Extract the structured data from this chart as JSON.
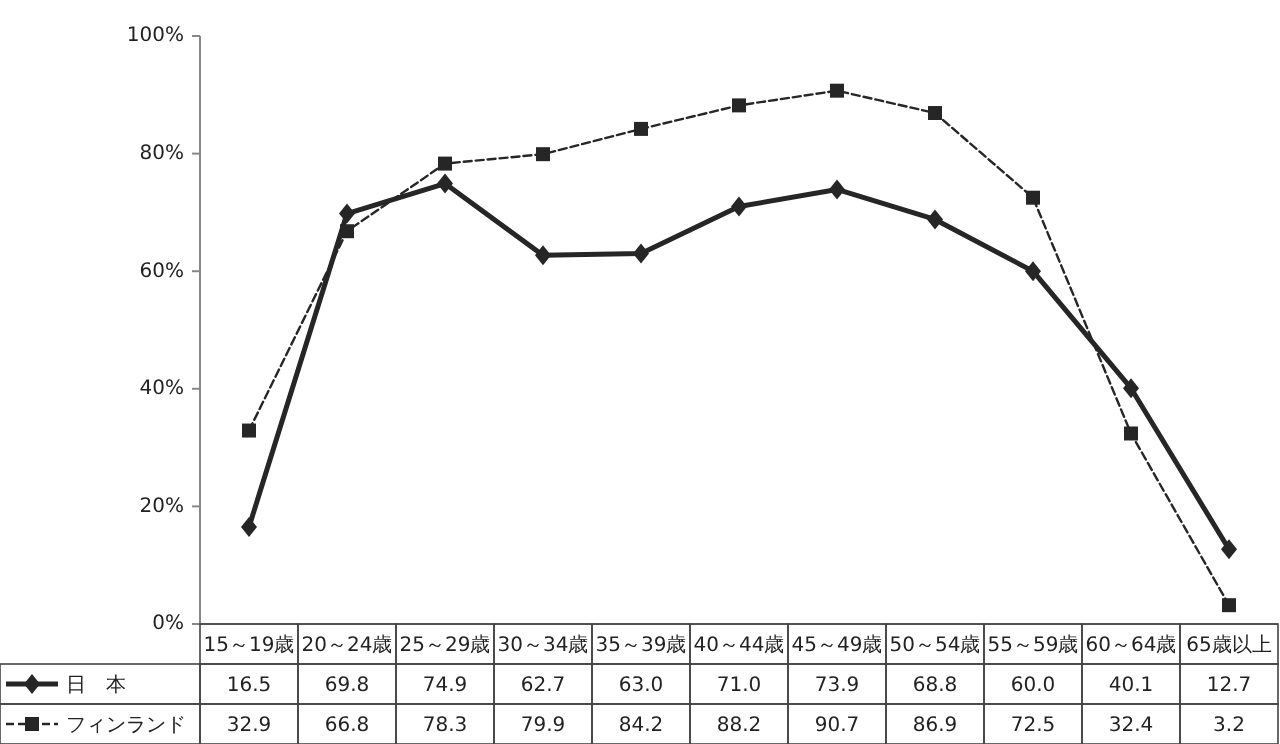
{
  "chart_data": {
    "type": "line",
    "categories": [
      "15～19歳",
      "20～24歳",
      "25～29歳",
      "30～34歳",
      "35～39歳",
      "40～44歳",
      "45～49歳",
      "50～54歳",
      "55～59歳",
      "60～64歳",
      "65歳以上"
    ],
    "series": [
      {
        "name": "日　本",
        "color": "#262626",
        "marker": "diamond",
        "line_style": "solid",
        "values": [
          16.5,
          69.8,
          74.9,
          62.7,
          63.0,
          71.0,
          73.9,
          68.8,
          60.0,
          40.1,
          12.7
        ],
        "value_labels": [
          "16.5",
          "69.8",
          "74.9",
          "62.7",
          "63.0",
          "71.0",
          "73.9",
          "68.8",
          "60.0",
          "40.1",
          "12.7"
        ]
      },
      {
        "name": "フィンランド",
        "color": "#262626",
        "marker": "square",
        "line_style": "dashed",
        "values": [
          32.9,
          66.8,
          78.3,
          79.9,
          84.2,
          88.2,
          90.7,
          86.9,
          72.5,
          32.4,
          3.2
        ],
        "value_labels": [
          "32.9",
          "66.8",
          "78.3",
          "79.9",
          "84.2",
          "88.2",
          "90.7",
          "86.9",
          "72.5",
          "32.4",
          "3.2"
        ]
      }
    ],
    "ylim": [
      0,
      100
    ],
    "yticks": [
      {
        "value": 0,
        "label": "0%"
      },
      {
        "value": 20,
        "label": "20%"
      },
      {
        "value": 40,
        "label": "40%"
      },
      {
        "value": 60,
        "label": "60%"
      },
      {
        "value": 80,
        "label": "80%"
      },
      {
        "value": 100,
        "label": "100%"
      }
    ],
    "legend": "bottom left"
  }
}
